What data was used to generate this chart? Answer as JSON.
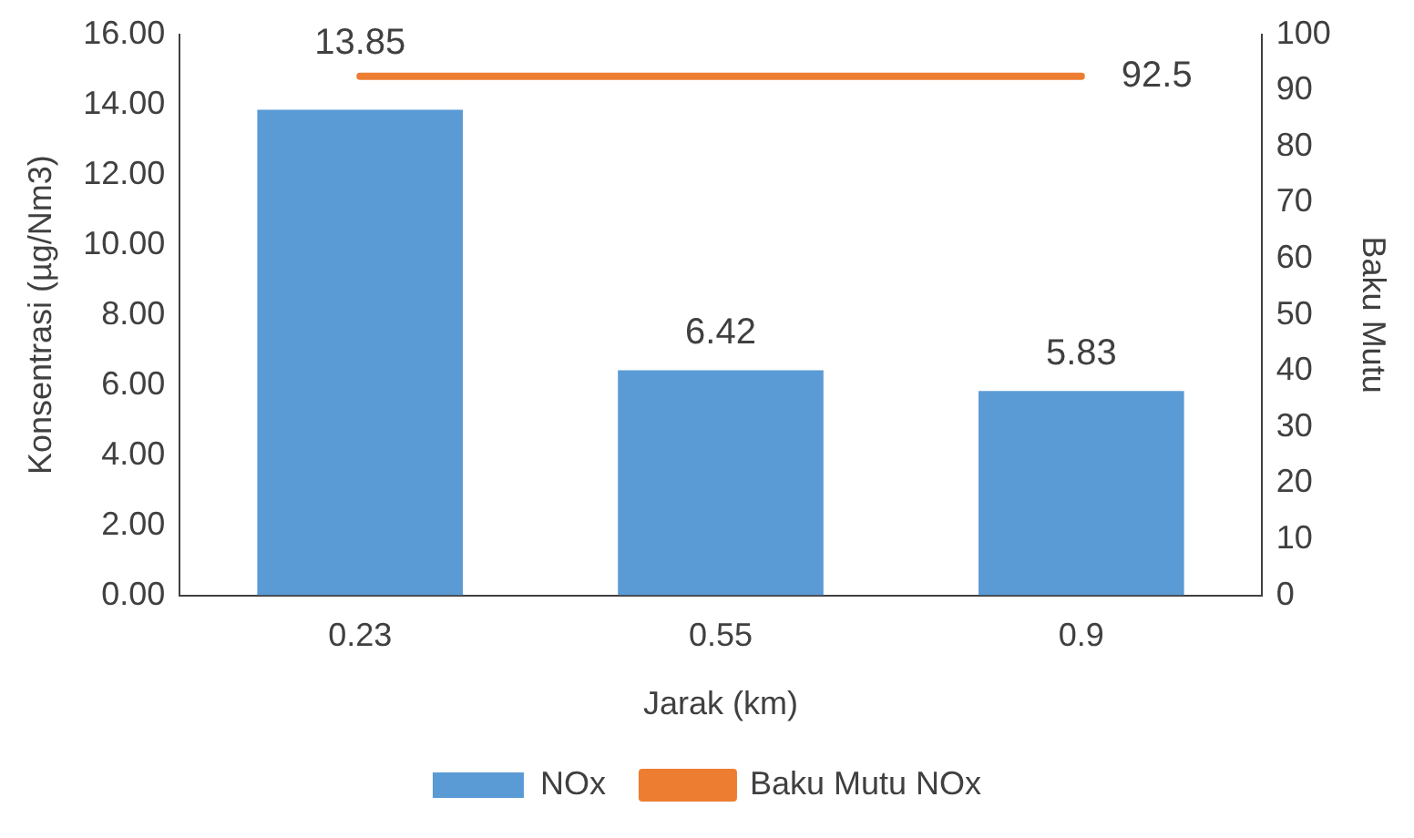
{
  "chart_data": {
    "type": "bar",
    "xlabel": "Jarak (km)",
    "ylabel": "Konsentrasi (µg/Nm3)",
    "y2label": "Baku Mutu",
    "categories": [
      "0.23",
      "0.55",
      "0.9"
    ],
    "series": [
      {
        "name": "NOx",
        "color": "#5b9bd5",
        "values": [
          13.85,
          6.42,
          5.83
        ],
        "value_labels": [
          "13.85",
          "6.42",
          "5.83"
        ]
      },
      {
        "name": "Baku Mutu NOx",
        "type": "line",
        "axis": "y2",
        "color": "#ed7d31",
        "values": [
          92.5,
          92.5,
          92.5
        ],
        "value_labels": [
          null,
          null,
          "92.5"
        ]
      }
    ],
    "ylim": [
      0,
      16
    ],
    "yticks": [
      {
        "value": 0,
        "label": "0.00"
      },
      {
        "value": 2,
        "label": "2.00"
      },
      {
        "value": 4,
        "label": "4.00"
      },
      {
        "value": 6,
        "label": "6.00"
      },
      {
        "value": 8,
        "label": "8.00"
      },
      {
        "value": 10,
        "label": "10.00"
      },
      {
        "value": 12,
        "label": "12.00"
      },
      {
        "value": 14,
        "label": "14.00"
      },
      {
        "value": 16,
        "label": "16.00"
      }
    ],
    "y2lim": [
      0,
      100
    ],
    "y2ticks": [
      0,
      10,
      20,
      30,
      40,
      50,
      60,
      70,
      80,
      90,
      100
    ],
    "grid": false,
    "legend": "bottom",
    "marker": "none",
    "line_style": "solid"
  }
}
